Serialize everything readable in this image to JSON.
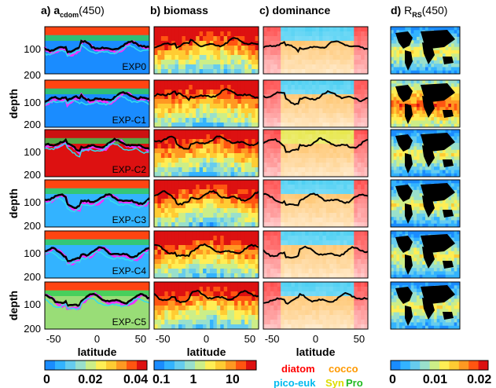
{
  "chart_data": {
    "type": "heatmap",
    "columns": [
      {
        "id": "a",
        "label": "a)",
        "title_main": "a",
        "title_sub": "cdom",
        "title_tail": "(450)"
      },
      {
        "id": "b",
        "label": "b)",
        "title_main": "biomass",
        "title_sub": "",
        "title_tail": ""
      },
      {
        "id": "c",
        "label": "c)",
        "title_main": "dominance",
        "title_sub": "",
        "title_tail": ""
      },
      {
        "id": "d",
        "label": "d)",
        "title_main": "R",
        "title_sub": "RS",
        "title_tail": "(450)"
      }
    ],
    "experiments": [
      "EXP0",
      "EXP-C1",
      "EXP-C2",
      "EXP-C3",
      "EXP-C4",
      "EXP-C5"
    ],
    "ylabel": "depth",
    "yticks": [
      "100",
      "200"
    ],
    "xlabel": "latitude",
    "xticks": [
      "-50",
      "0",
      "50"
    ],
    "x_range": [
      -60,
      60
    ],
    "y_range": [
      0,
      200
    ],
    "colorbars": [
      {
        "panel": "a",
        "ticks": [
          "0",
          "0.02",
          "0.04"
        ],
        "range": [
          0,
          0.045
        ],
        "scale": "linear"
      },
      {
        "panel": "b",
        "ticks": [
          "0.1",
          "1",
          "10"
        ],
        "range": [
          0.1,
          40
        ],
        "scale": "log"
      },
      {
        "panel": "d",
        "ticks": [
          "0",
          "0.01",
          "0.02"
        ],
        "range": [
          0,
          0.022
        ],
        "scale": "linear"
      }
    ],
    "dominance_legend": [
      {
        "name": "diatom",
        "color": "#ff0000"
      },
      {
        "name": "cocco",
        "color": "#ff9900"
      },
      {
        "name": "pico-euk",
        "color": "#00bbee"
      },
      {
        "name": "Syn",
        "color": "#dddd00"
      },
      {
        "name": "Pro",
        "color": "#22bb22"
      }
    ],
    "colormap": [
      "#1a8cff",
      "#33b3ff",
      "#66ccee",
      "#99e0cc",
      "#ccee88",
      "#ffee55",
      "#ffcc33",
      "#ff9922",
      "#ff5511",
      "#dd1111"
    ]
  }
}
